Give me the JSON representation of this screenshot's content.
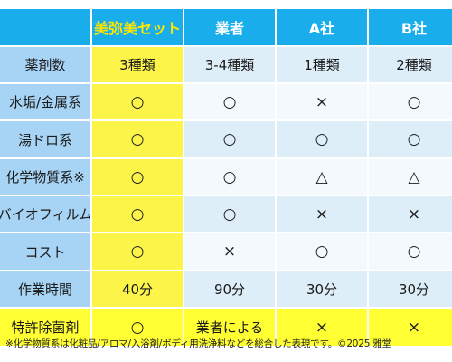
{
  "table": {
    "headers": [
      "",
      "美弥美セット",
      "業者",
      "A社",
      "B社"
    ],
    "rows": [
      {
        "label": "薬剤数",
        "values": [
          "3種類",
          "3-4種類",
          "1種類",
          "2種類"
        ]
      },
      {
        "label": "水垢/金属系",
        "values": [
          "○",
          "○",
          "×",
          "○"
        ]
      },
      {
        "label": "湯ドロ系",
        "values": [
          "○",
          "○",
          "○",
          "○"
        ]
      },
      {
        "label": "化学物質系※",
        "values": [
          "○",
          "○",
          "△",
          "△"
        ]
      },
      {
        "label": "バイオフィルム",
        "values": [
          "○",
          "○",
          "×",
          "×"
        ]
      },
      {
        "label": "コスト",
        "values": [
          "○",
          "×",
          "○",
          "○"
        ]
      },
      {
        "label": "作業時間",
        "values": [
          "40分",
          "90分",
          "30分",
          "30分"
        ]
      },
      {
        "label": "特許除菌剤",
        "values": [
          "○",
          "業者による",
          "×",
          "×"
        ]
      }
    ]
  },
  "footnote": "※化学物質系は化粧品/アロマ/入浴剤/ボディ用洗浄料などを総合した表現です。©2025 雅堂",
  "colors": {
    "header_bg": "#19aeeb",
    "header_accent_text": "#ffe600",
    "label_bg": "#a7d3f4",
    "row_light": "#ddeef9",
    "row_white": "#f4f9fd",
    "highlight_yellow": "#fdf44a"
  }
}
